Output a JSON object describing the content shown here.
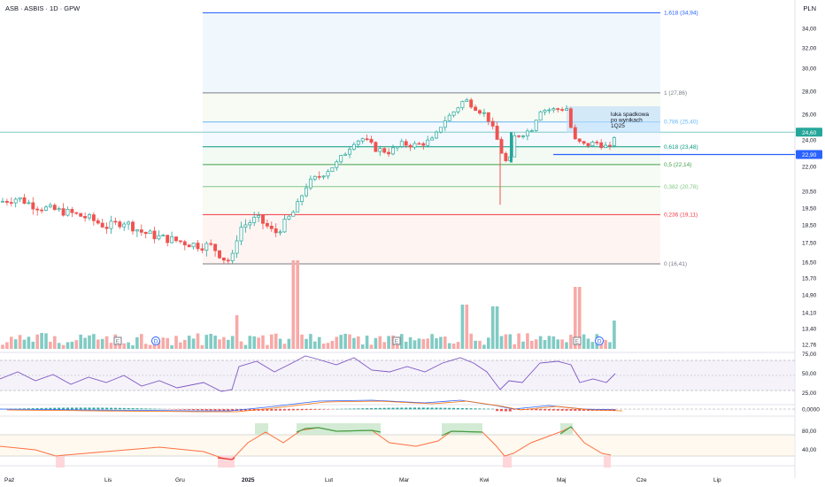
{
  "header": {
    "symbol_title": "ASB · ASBIS · 1D · GPW",
    "currency": "PLN"
  },
  "colors": {
    "up": "#26a69a",
    "down": "#ef5350",
    "fib_blue": "#2962ff",
    "rsi": "#7e57c2",
    "macd": "#2962ff",
    "signal": "#ff6d00",
    "stoch_up": "#43a047",
    "stoch_mid": "#ff7043"
  },
  "chart_data": {
    "type": "candlestick",
    "title": "ASB · ASBIS · 1D · GPW",
    "price_axis": {
      "ticks": [
        "34,00",
        "32,00",
        "30,00",
        "28,00",
        "26,00",
        "24,00",
        "22,00",
        "20,50",
        "19,50",
        "18,50",
        "17,50",
        "16,50",
        "15,70",
        "14,90",
        "14,10",
        "13,40",
        "12,76"
      ],
      "ylim": [
        12.76,
        35.5
      ]
    },
    "time_axis": [
      "Paź",
      "Lis",
      "Gru",
      "2025",
      "Lut",
      "Mar",
      "Kwi",
      "Maj",
      "Cze",
      "Lip"
    ],
    "price_tags": [
      {
        "label": "24,60",
        "value": 24.6,
        "color": "#26a69a"
      },
      {
        "label": "22,90",
        "value": 22.9,
        "color": "#2962ff"
      }
    ],
    "fib_levels": [
      {
        "label": "1,618 (34,94)",
        "value": 34.94
      },
      {
        "label": "1 (27,86)",
        "value": 27.86
      },
      {
        "label": "0,786 (25,40)",
        "value": 25.4
      },
      {
        "label": "0,618 (23,48)",
        "value": 23.48
      },
      {
        "label": "0,5 (22,14)",
        "value": 22.14
      },
      {
        "label": "0,382 (20,78)",
        "value": 20.78
      },
      {
        "label": "0,236 (19,11)",
        "value": 19.11
      },
      {
        "label": "0 (16,41)",
        "value": 16.41
      }
    ],
    "annotation": {
      "lines": [
        "luka spadkowa",
        "po wynikach",
        "1Q25"
      ]
    },
    "event_markers": [
      "E",
      "D",
      "E",
      "E",
      "D"
    ],
    "rsi": {
      "ticks": [
        "75,00",
        "50,00",
        "25,00"
      ],
      "levels": [
        70,
        30
      ]
    },
    "macd": {
      "ticks": [
        "0,0000"
      ]
    },
    "stoch": {
      "ticks": [
        "80,00",
        "40,00"
      ]
    },
    "grid": false,
    "legend": "none"
  }
}
